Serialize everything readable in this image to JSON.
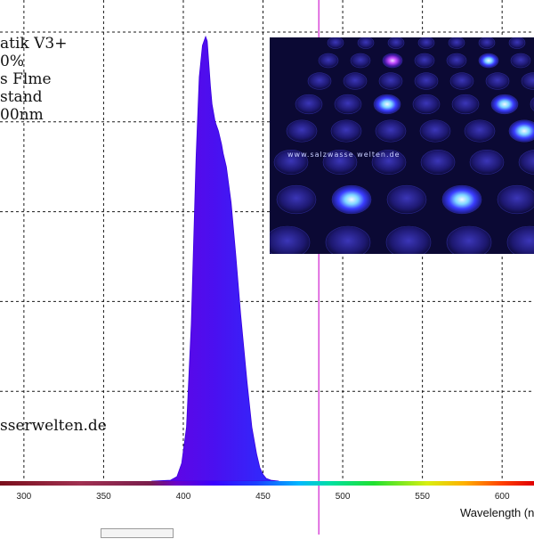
{
  "caption_lines": [
    "atik V3+",
    "0%",
    "s Flme",
    "stand",
    "00nm"
  ],
  "watermark": "sserwelten.de",
  "inset_caption": "www.salzwasse welten.de",
  "chart_data": {
    "type": "area",
    "xlabel": "Wavelength (n",
    "ylabel": "",
    "xlim": [
      285,
      620
    ],
    "ylim": [
      0,
      1
    ],
    "x_ticks": [
      300,
      350,
      400,
      450,
      500,
      550,
      600
    ],
    "grid": true,
    "marker_line_x": 485,
    "series": [
      {
        "x": [
          380,
          392,
          396,
          399,
          402,
          405,
          408,
          410,
          412,
          414,
          415,
          416,
          417,
          418,
          420,
          422,
          424,
          425,
          427,
          430,
          433,
          436,
          440,
          443,
          446,
          448,
          450,
          452,
          455,
          460
        ],
        "values": [
          0.0,
          0.002,
          0.01,
          0.04,
          0.12,
          0.35,
          0.72,
          0.9,
          0.97,
          0.99,
          0.98,
          0.93,
          0.88,
          0.84,
          0.8,
          0.78,
          0.75,
          0.73,
          0.7,
          0.62,
          0.5,
          0.37,
          0.22,
          0.12,
          0.06,
          0.03,
          0.015,
          0.006,
          0.002,
          0.0
        ]
      }
    ]
  },
  "colors": {
    "grid": "#1a1a1a",
    "marker_line": "#d020d0",
    "fill_left": "#4b00e6",
    "fill_right": "#1a1aff"
  }
}
